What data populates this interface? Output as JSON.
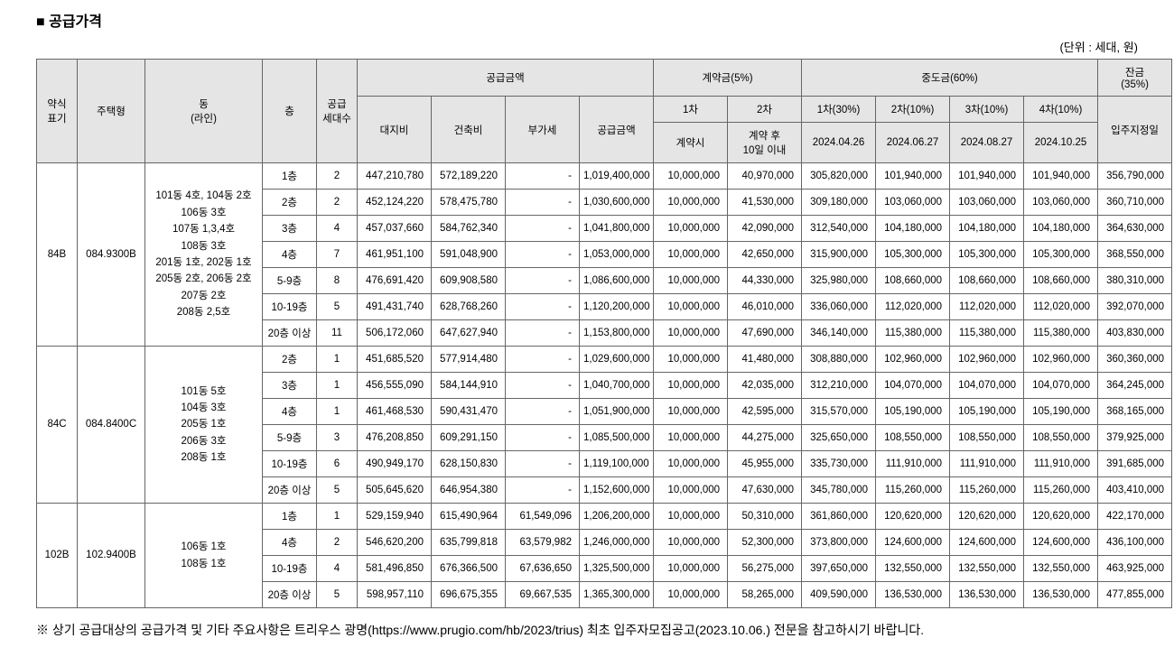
{
  "title": "■ 공급가격",
  "unit_label": "(단위 : 세대, 원)",
  "headers": {
    "type_code": "약식\n표기",
    "house_type": "주택형",
    "dong": "동\n(라인)",
    "floor": "층",
    "supply_count": "공급\n세대수",
    "supply_amount_group": "공급금액",
    "land_cost": "대지비",
    "build_cost": "건축비",
    "vat": "부가세",
    "supply_amount": "공급금액",
    "contract_group": "계약금(5%)",
    "contract_1st": "1차",
    "contract_2nd": "2차",
    "contract_time": "계약시",
    "contract_10days": "계약 후\n10일 이내",
    "interim_group": "중도금(60%)",
    "interim_1": "1차(30%)",
    "interim_2": "2차(10%)",
    "interim_3": "3차(10%)",
    "interim_4": "4차(10%)",
    "date_1": "2024.04.26",
    "date_2": "2024.06.27",
    "date_3": "2024.08.27",
    "date_4": "2024.10.25",
    "balance_group": "잔금\n(35%)",
    "move_in": "입주지정일"
  },
  "groups": [
    {
      "type_code": "84B",
      "house_type": "084.9300B",
      "dong": "101동 4호, 104동 2호\n106동 3호\n107동 1,3,4호\n108동 3호\n201동 1호, 202동 1호\n205동 2호, 206동 2호\n207동 2호\n208동 2,5호",
      "rows": [
        {
          "floor": "1층",
          "count": "2",
          "land": "447,210,780",
          "build": "572,189,220",
          "vat": "-",
          "supply": "1,019,400,000",
          "c1": "10,000,000",
          "c2": "40,970,000",
          "i1": "305,820,000",
          "i2": "101,940,000",
          "i3": "101,940,000",
          "i4": "101,940,000",
          "bal": "356,790,000"
        },
        {
          "floor": "2층",
          "count": "2",
          "land": "452,124,220",
          "build": "578,475,780",
          "vat": "-",
          "supply": "1,030,600,000",
          "c1": "10,000,000",
          "c2": "41,530,000",
          "i1": "309,180,000",
          "i2": "103,060,000",
          "i3": "103,060,000",
          "i4": "103,060,000",
          "bal": "360,710,000"
        },
        {
          "floor": "3층",
          "count": "4",
          "land": "457,037,660",
          "build": "584,762,340",
          "vat": "-",
          "supply": "1,041,800,000",
          "c1": "10,000,000",
          "c2": "42,090,000",
          "i1": "312,540,000",
          "i2": "104,180,000",
          "i3": "104,180,000",
          "i4": "104,180,000",
          "bal": "364,630,000"
        },
        {
          "floor": "4층",
          "count": "7",
          "land": "461,951,100",
          "build": "591,048,900",
          "vat": "-",
          "supply": "1,053,000,000",
          "c1": "10,000,000",
          "c2": "42,650,000",
          "i1": "315,900,000",
          "i2": "105,300,000",
          "i3": "105,300,000",
          "i4": "105,300,000",
          "bal": "368,550,000"
        },
        {
          "floor": "5-9층",
          "count": "8",
          "land": "476,691,420",
          "build": "609,908,580",
          "vat": "-",
          "supply": "1,086,600,000",
          "c1": "10,000,000",
          "c2": "44,330,000",
          "i1": "325,980,000",
          "i2": "108,660,000",
          "i3": "108,660,000",
          "i4": "108,660,000",
          "bal": "380,310,000"
        },
        {
          "floor": "10-19층",
          "count": "5",
          "land": "491,431,740",
          "build": "628,768,260",
          "vat": "-",
          "supply": "1,120,200,000",
          "c1": "10,000,000",
          "c2": "46,010,000",
          "i1": "336,060,000",
          "i2": "112,020,000",
          "i3": "112,020,000",
          "i4": "112,020,000",
          "bal": "392,070,000"
        },
        {
          "floor": "20층 이상",
          "count": "11",
          "land": "506,172,060",
          "build": "647,627,940",
          "vat": "-",
          "supply": "1,153,800,000",
          "c1": "10,000,000",
          "c2": "47,690,000",
          "i1": "346,140,000",
          "i2": "115,380,000",
          "i3": "115,380,000",
          "i4": "115,380,000",
          "bal": "403,830,000"
        }
      ]
    },
    {
      "type_code": "84C",
      "house_type": "084.8400C",
      "dong": "101동 5호\n104동 3호\n205동 1호\n206동 3호\n208동 1호",
      "rows": [
        {
          "floor": "2층",
          "count": "1",
          "land": "451,685,520",
          "build": "577,914,480",
          "vat": "-",
          "supply": "1,029,600,000",
          "c1": "10,000,000",
          "c2": "41,480,000",
          "i1": "308,880,000",
          "i2": "102,960,000",
          "i3": "102,960,000",
          "i4": "102,960,000",
          "bal": "360,360,000"
        },
        {
          "floor": "3층",
          "count": "1",
          "land": "456,555,090",
          "build": "584,144,910",
          "vat": "-",
          "supply": "1,040,700,000",
          "c1": "10,000,000",
          "c2": "42,035,000",
          "i1": "312,210,000",
          "i2": "104,070,000",
          "i3": "104,070,000",
          "i4": "104,070,000",
          "bal": "364,245,000"
        },
        {
          "floor": "4층",
          "count": "1",
          "land": "461,468,530",
          "build": "590,431,470",
          "vat": "-",
          "supply": "1,051,900,000",
          "c1": "10,000,000",
          "c2": "42,595,000",
          "i1": "315,570,000",
          "i2": "105,190,000",
          "i3": "105,190,000",
          "i4": "105,190,000",
          "bal": "368,165,000"
        },
        {
          "floor": "5-9층",
          "count": "3",
          "land": "476,208,850",
          "build": "609,291,150",
          "vat": "-",
          "supply": "1,085,500,000",
          "c1": "10,000,000",
          "c2": "44,275,000",
          "i1": "325,650,000",
          "i2": "108,550,000",
          "i3": "108,550,000",
          "i4": "108,550,000",
          "bal": "379,925,000"
        },
        {
          "floor": "10-19층",
          "count": "6",
          "land": "490,949,170",
          "build": "628,150,830",
          "vat": "-",
          "supply": "1,119,100,000",
          "c1": "10,000,000",
          "c2": "45,955,000",
          "i1": "335,730,000",
          "i2": "111,910,000",
          "i3": "111,910,000",
          "i4": "111,910,000",
          "bal": "391,685,000"
        },
        {
          "floor": "20층 이상",
          "count": "5",
          "land": "505,645,620",
          "build": "646,954,380",
          "vat": "-",
          "supply": "1,152,600,000",
          "c1": "10,000,000",
          "c2": "47,630,000",
          "i1": "345,780,000",
          "i2": "115,260,000",
          "i3": "115,260,000",
          "i4": "115,260,000",
          "bal": "403,410,000"
        }
      ]
    },
    {
      "type_code": "102B",
      "house_type": "102.9400B",
      "dong": "106동 1호\n108동 1호",
      "rows": [
        {
          "floor": "1층",
          "count": "1",
          "land": "529,159,940",
          "build": "615,490,964",
          "vat": "61,549,096",
          "supply": "1,206,200,000",
          "c1": "10,000,000",
          "c2": "50,310,000",
          "i1": "361,860,000",
          "i2": "120,620,000",
          "i3": "120,620,000",
          "i4": "120,620,000",
          "bal": "422,170,000"
        },
        {
          "floor": "4층",
          "count": "2",
          "land": "546,620,200",
          "build": "635,799,818",
          "vat": "63,579,982",
          "supply": "1,246,000,000",
          "c1": "10,000,000",
          "c2": "52,300,000",
          "i1": "373,800,000",
          "i2": "124,600,000",
          "i3": "124,600,000",
          "i4": "124,600,000",
          "bal": "436,100,000"
        },
        {
          "floor": "10-19층",
          "count": "4",
          "land": "581,496,850",
          "build": "676,366,500",
          "vat": "67,636,650",
          "supply": "1,325,500,000",
          "c1": "10,000,000",
          "c2": "56,275,000",
          "i1": "397,650,000",
          "i2": "132,550,000",
          "i3": "132,550,000",
          "i4": "132,550,000",
          "bal": "463,925,000"
        },
        {
          "floor": "20층 이상",
          "count": "5",
          "land": "598,957,110",
          "build": "696,675,355",
          "vat": "69,667,535",
          "supply": "1,365,300,000",
          "c1": "10,000,000",
          "c2": "58,265,000",
          "i1": "409,590,000",
          "i2": "136,530,000",
          "i3": "136,530,000",
          "i4": "136,530,000",
          "bal": "477,855,000"
        }
      ]
    }
  ],
  "footnote": "※ 상기 공급대상의 공급가격 및 기타 주요사항은 트리우스 광명(https://www.prugio.com/hb/2023/trius) 최초 입주자모집공고(2023.10.06.) 전문을 참고하시기 바랍니다."
}
